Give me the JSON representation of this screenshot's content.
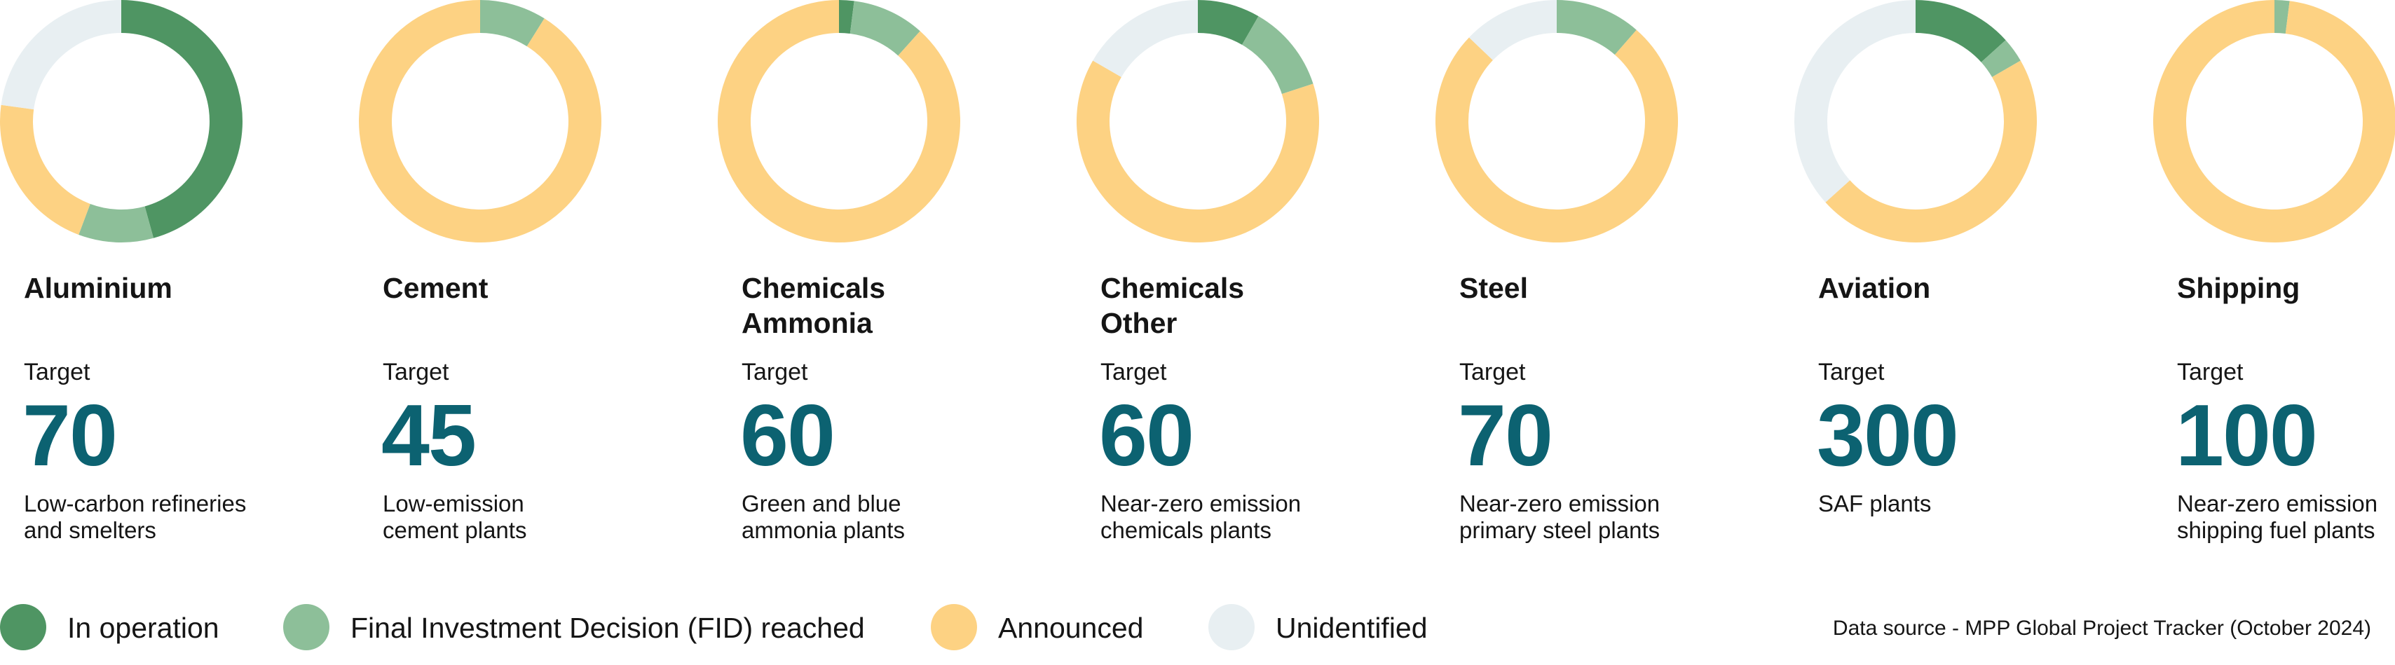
{
  "colors": {
    "in_operation": "#4f9563",
    "fid": "#8dbf99",
    "announced": "#fdd283",
    "unidentified": "#e8eff2",
    "target_value": "#0c6271"
  },
  "chart_data": [
    {
      "type": "pie",
      "variant": "donut",
      "title": "Aluminium",
      "target_label": "Target",
      "target": "70",
      "description": [
        "Low-carbon refineries",
        "and smelters"
      ],
      "series": [
        {
          "name": "In operation",
          "value": 32
        },
        {
          "name": "Final Investment Decision (FID) reached",
          "value": 7
        },
        {
          "name": "Announced",
          "value": 15
        },
        {
          "name": "Unidentified",
          "value": 16
        }
      ]
    },
    {
      "type": "pie",
      "variant": "donut",
      "title": "Cement",
      "target_label": "Target",
      "target": "45",
      "description": [
        "Low-emission",
        "cement plants"
      ],
      "series": [
        {
          "name": "In operation",
          "value": 0
        },
        {
          "name": "Final Investment Decision (FID) reached",
          "value": 4
        },
        {
          "name": "Announced",
          "value": 41
        },
        {
          "name": "Unidentified",
          "value": 0
        }
      ]
    },
    {
      "type": "pie",
      "variant": "donut",
      "title": "Chemicals Ammonia",
      "target_label": "Target",
      "target": "60",
      "description": [
        "Green and blue",
        "ammonia plants"
      ],
      "series": [
        {
          "name": "In operation",
          "value": 1.2
        },
        {
          "name": "Final Investment Decision (FID) reached",
          "value": 5.8
        },
        {
          "name": "Announced",
          "value": 53
        },
        {
          "name": "Unidentified",
          "value": 0
        }
      ]
    },
    {
      "type": "pie",
      "variant": "donut",
      "title": "Chemicals Other",
      "target_label": "Target",
      "target": "60",
      "description": [
        "Near-zero emission",
        "chemicals plants"
      ],
      "series": [
        {
          "name": "In operation",
          "value": 5
        },
        {
          "name": "Final Investment Decision (FID) reached",
          "value": 7
        },
        {
          "name": "Announced",
          "value": 38
        },
        {
          "name": "Unidentified",
          "value": 10
        }
      ]
    },
    {
      "type": "pie",
      "variant": "donut",
      "title": "Steel",
      "target_label": "Target",
      "target": "70",
      "description": [
        "Near-zero emission",
        "primary steel plants"
      ],
      "series": [
        {
          "name": "In operation",
          "value": 0
        },
        {
          "name": "Final Investment Decision (FID) reached",
          "value": 8
        },
        {
          "name": "Announced",
          "value": 53
        },
        {
          "name": "Unidentified",
          "value": 9
        }
      ]
    },
    {
      "type": "pie",
      "variant": "donut",
      "title": "Aviation",
      "target_label": "Target",
      "target": "300",
      "description": [
        "SAF plants"
      ],
      "series": [
        {
          "name": "In operation",
          "value": 40
        },
        {
          "name": "Final Investment Decision (FID) reached",
          "value": 10
        },
        {
          "name": "Announced",
          "value": 140
        },
        {
          "name": "Unidentified",
          "value": 110
        }
      ]
    },
    {
      "type": "pie",
      "variant": "donut",
      "title": "Shipping",
      "target_label": "Target",
      "target": "100",
      "description": [
        "Near-zero emission",
        "shipping fuel plants"
      ],
      "series": [
        {
          "name": "In operation",
          "value": 0
        },
        {
          "name": "Final Investment Decision (FID) reached",
          "value": 2
        },
        {
          "name": "Announced",
          "value": 98
        },
        {
          "name": "Unidentified",
          "value": 0
        }
      ]
    }
  ],
  "legend": [
    {
      "label": "In operation",
      "color": "#4f9563"
    },
    {
      "label": "Final Investment Decision (FID) reached",
      "color": "#8dbf99"
    },
    {
      "label": "Announced",
      "color": "#fdd283"
    },
    {
      "label": "Unidentified",
      "color": "#e8eff2"
    }
  ],
  "source": "Data source - MPP Global Project Tracker (October 2024)"
}
